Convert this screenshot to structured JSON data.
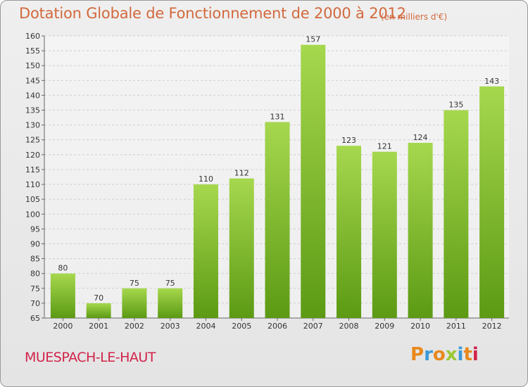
{
  "title": "Dotation Globale de Fonctionnement de 2000 à 2012",
  "unit": "(en milliers d'€)",
  "commune": "MUESPACH-LE-HAUT",
  "logo": {
    "letters": [
      "P",
      "r",
      "o",
      "x",
      "i",
      "t",
      "i"
    ],
    "colors": [
      "#e8891c",
      "#3b9ad8",
      "#e8891c",
      "#9bc834",
      "#3b9ad8",
      "#e8891c",
      "#d2234a"
    ]
  },
  "colors": {
    "bar_top": "#a6d84e",
    "bar_bottom": "#5c9a14",
    "title": "#d2693c",
    "commune": "#d2234a"
  },
  "chart_data": {
    "type": "bar",
    "categories": [
      "2000",
      "2001",
      "2002",
      "2003",
      "2004",
      "2005",
      "2006",
      "2007",
      "2008",
      "2009",
      "2010",
      "2011",
      "2012"
    ],
    "values": [
      80,
      70,
      75,
      75,
      110,
      112,
      131,
      157,
      123,
      121,
      124,
      135,
      143
    ],
    "title": "Dotation Globale de Fonctionnement de 2000 à 2012",
    "xlabel": "",
    "ylabel": "",
    "ylim": [
      65,
      160
    ],
    "yticks": [
      65,
      70,
      75,
      80,
      85,
      90,
      95,
      100,
      105,
      110,
      115,
      120,
      125,
      130,
      135,
      140,
      145,
      150,
      155,
      160
    ],
    "grid": true
  }
}
